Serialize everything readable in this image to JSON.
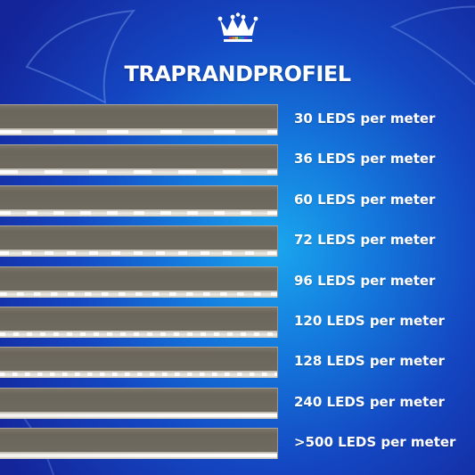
{
  "title": "TRAPRANDPROFIEL",
  "logo": {
    "icon": "crown-icon",
    "stripe_colors": [
      "#e53935",
      "#fb8c00",
      "#fdd835",
      "#43a047",
      "#1e88e5",
      "#8e24aa"
    ]
  },
  "colors": {
    "background_center": "#1aa6ee",
    "background_edge": "#14259a",
    "text": "#ffffff",
    "profile": "#6e6a60"
  },
  "rows": [
    {
      "label": "30 LEDS per meter",
      "leds": 30
    },
    {
      "label": "36 LEDS per meter",
      "leds": 36
    },
    {
      "label": "60 LEDS per meter",
      "leds": 60
    },
    {
      "label": "72 LEDS per meter",
      "leds": 72
    },
    {
      "label": "96 LEDS per meter",
      "leds": 96
    },
    {
      "label": "120 LEDS per meter",
      "leds": 120
    },
    {
      "label": "128 LEDS per meter",
      "leds": 128
    },
    {
      "label": "240 LEDS per meter",
      "leds": 240
    },
    {
      "label": ">500 LEDS per meter",
      "leds": 500
    }
  ]
}
